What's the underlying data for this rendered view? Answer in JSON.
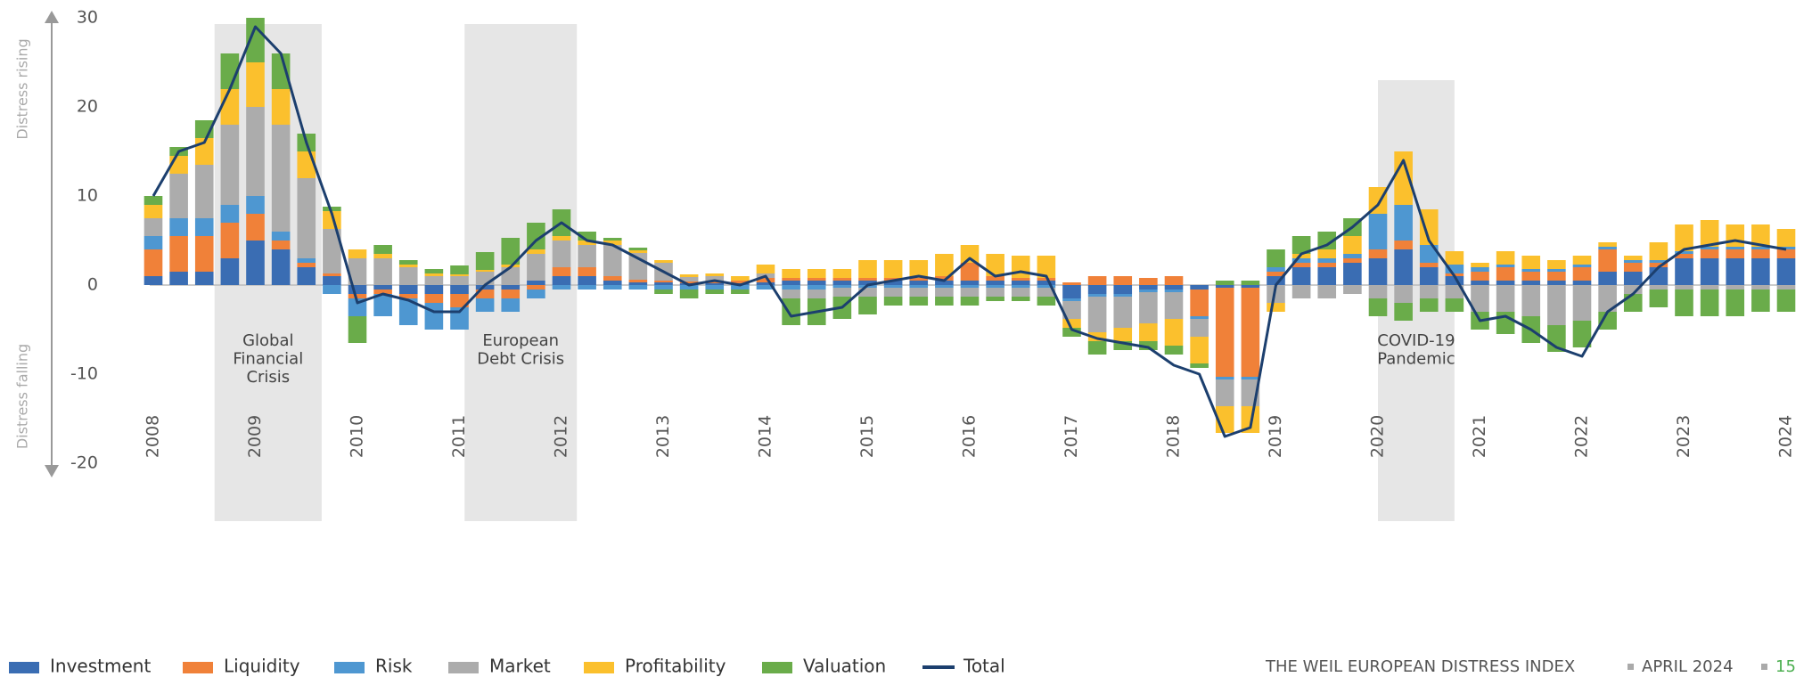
{
  "chart_data": {
    "type": "stacked-bar-line",
    "categories": [
      "2008",
      null,
      null,
      null,
      "2009",
      null,
      null,
      null,
      "2010",
      null,
      null,
      null,
      "2011",
      null,
      null,
      null,
      "2012",
      null,
      null,
      null,
      "2013",
      null,
      null,
      null,
      "2014",
      null,
      null,
      null,
      "2015",
      null,
      null,
      null,
      "2016",
      null,
      null,
      null,
      "2017",
      null,
      null,
      null,
      "2018",
      null,
      null,
      null,
      "2019",
      null,
      null,
      null,
      "2020",
      null,
      null,
      null,
      "2021",
      null,
      null,
      null,
      "2022",
      null,
      null,
      null,
      "2023",
      null,
      null,
      null,
      "2024"
    ],
    "series": [
      {
        "name": "Investment",
        "color": "#3a6db3",
        "values": [
          1,
          1.5,
          1.5,
          3,
          5,
          4,
          2,
          1,
          -1,
          -0.5,
          -1,
          -1,
          -1,
          -0.5,
          -0.5,
          0.5,
          1,
          1,
          0.5,
          0.3,
          0.3,
          0.2,
          0.2,
          0.2,
          0.3,
          0.5,
          0.5,
          0.5,
          0.5,
          0.5,
          0.5,
          0.5,
          0.5,
          0.5,
          0.5,
          0.5,
          -1.5,
          -1,
          -1,
          -0.5,
          -0.5,
          -0.5,
          -0.3,
          -0.3,
          1,
          2,
          2,
          2.5,
          3,
          4,
          2,
          1,
          0.5,
          0.5,
          0.5,
          0.5,
          0.5,
          1.5,
          1.5,
          2,
          3,
          3,
          3,
          3,
          3
        ]
      },
      {
        "name": "Liquidity",
        "color": "#f08139",
        "values": [
          3,
          4,
          4,
          4,
          3,
          1,
          0.5,
          0.3,
          -0.5,
          -0.5,
          -0.5,
          -1,
          -1.5,
          -1,
          -1,
          -0.5,
          1,
          1,
          0.5,
          0.3,
          0.2,
          0.2,
          0.3,
          0.3,
          0.5,
          0.3,
          0.3,
          0.3,
          0.3,
          0.3,
          0.3,
          0.5,
          2,
          0.5,
          0.3,
          0.3,
          0.3,
          1,
          1,
          0.8,
          1,
          -3,
          -10,
          -10,
          0.5,
          0.5,
          0.5,
          0.5,
          1,
          1,
          0.5,
          0.3,
          1,
          1.5,
          1,
          1,
          1.5,
          2.5,
          1,
          0.5,
          0.5,
          1,
          1,
          1,
          1
        ]
      },
      {
        "name": "Risk",
        "color": "#4e97d1",
        "values": [
          1.5,
          2,
          2,
          2,
          2,
          1,
          0.5,
          -1,
          -2,
          -2.5,
          -3,
          -3,
          -2.5,
          -1.5,
          -1.5,
          -1,
          -0.5,
          -0.5,
          -0.5,
          -0.5,
          -0.5,
          -0.5,
          -0.5,
          -0.5,
          -0.5,
          -0.5,
          -0.5,
          -0.3,
          -0.3,
          -0.3,
          -0.3,
          -0.3,
          -0.3,
          -0.3,
          -0.3,
          -0.3,
          -0.3,
          -0.3,
          -0.3,
          -0.3,
          -0.3,
          -0.3,
          -0.3,
          -0.3,
          0.5,
          0.5,
          0.5,
          0.5,
          4,
          4,
          2,
          1,
          0.5,
          0.3,
          0.3,
          0.3,
          0.3,
          0.3,
          0.3,
          0.3,
          0.3,
          0.3,
          0.3,
          0.3,
          0.3
        ]
      },
      {
        "name": "Market",
        "color": "#acacac",
        "values": [
          2,
          5,
          6,
          9,
          10,
          12,
          9,
          5,
          3,
          3,
          2,
          1,
          1,
          1.5,
          2,
          3,
          3,
          2.5,
          3.5,
          3,
          2,
          0.5,
          0.5,
          0,
          0.5,
          -1,
          -1,
          -1,
          -1,
          -1,
          -1,
          -1,
          -1,
          -1,
          -1,
          -1,
          -2,
          -4,
          -3.5,
          -3.5,
          -3,
          -2,
          -3,
          -3,
          -2,
          -1.5,
          -1.5,
          -1,
          -1.5,
          -2,
          -1.5,
          -1.5,
          -3,
          -3,
          -3.5,
          -4.5,
          -4,
          -3,
          -1,
          -0.5,
          -0.5,
          -0.5,
          -0.5,
          -0.5,
          -0.5
        ]
      },
      {
        "name": "Profitability",
        "color": "#fbc02d",
        "values": [
          1.5,
          2,
          3,
          4,
          5,
          4,
          3,
          2,
          1,
          0.5,
          0.3,
          0.3,
          0.2,
          0.2,
          0.3,
          0.5,
          0.5,
          0.5,
          0.5,
          0.3,
          0.3,
          0.3,
          0.3,
          0.5,
          1,
          1,
          1,
          1,
          2,
          2,
          2,
          2.5,
          2,
          2.5,
          2.5,
          2.5,
          -1,
          -1,
          -1.5,
          -2,
          -3,
          -3,
          -3,
          -3,
          -1,
          0.5,
          1,
          2,
          3,
          6,
          4,
          1.5,
          0.5,
          1.5,
          1.5,
          1,
          1,
          0.5,
          0.5,
          2,
          3,
          3,
          2.5,
          2.5,
          2
        ]
      },
      {
        "name": "Valuation",
        "color": "#6aac4a",
        "values": [
          1,
          1,
          2,
          4,
          5,
          4,
          2,
          0.5,
          -3,
          1,
          0.5,
          0.5,
          1,
          2,
          3,
          3,
          3,
          1,
          0.3,
          0.3,
          -0.5,
          -1,
          -0.5,
          -0.5,
          0,
          -3,
          -3,
          -2.5,
          -2,
          -1,
          -1,
          -1,
          -1,
          -0.5,
          -0.5,
          -1,
          -1,
          -1.5,
          -1,
          -1,
          -1,
          -0.5,
          0.5,
          0.5,
          2,
          2,
          2,
          2,
          -2,
          -2,
          -1.5,
          -1.5,
          -2,
          -2.5,
          -3,
          -3,
          -3,
          -2,
          -2,
          -2,
          -3,
          -3,
          -3,
          -2.5,
          -2.5
        ]
      },
      {
        "name": "Total",
        "color": "#1c3f6e",
        "values": [
          10,
          15,
          16,
          22,
          29,
          26,
          16,
          8,
          -2,
          -1,
          -1.7,
          -3,
          -3,
          0,
          2,
          5,
          7,
          5,
          4.5,
          3,
          1.5,
          0,
          0.5,
          0,
          1,
          -3.5,
          -3,
          -2.5,
          0,
          0.5,
          1,
          0.5,
          3,
          1,
          1.5,
          1,
          -5,
          -6,
          -6.5,
          -7,
          -9,
          -10,
          -17,
          -16,
          0,
          3.5,
          4.5,
          6.5,
          9,
          14,
          5,
          1,
          -4,
          -3.5,
          -5,
          -7,
          -8,
          -3,
          -1,
          2,
          4,
          4.5,
          5,
          4.5,
          4
        ]
      }
    ],
    "ylim": [
      -27,
      30
    ],
    "yticks": [
      -20,
      -10,
      0,
      10,
      20,
      30
    ],
    "annotations": [
      {
        "text": [
          "Global",
          "Financial",
          "Crisis"
        ],
        "start": 2008.6,
        "end": 2009.65
      },
      {
        "text": [
          "European",
          "Debt Crisis"
        ],
        "start": 2011.05,
        "end": 2012.15
      },
      {
        "text": [
          "COVID-19",
          "Pandemic"
        ],
        "start": 2020.0,
        "end": 2020.75
      }
    ],
    "axis_notes": {
      "up": "Distress rising",
      "down": "Distress falling"
    }
  },
  "footer": {
    "title": "THE WEIL EUROPEAN DISTRESS INDEX",
    "date": "APRIL 2024",
    "page": "15"
  }
}
